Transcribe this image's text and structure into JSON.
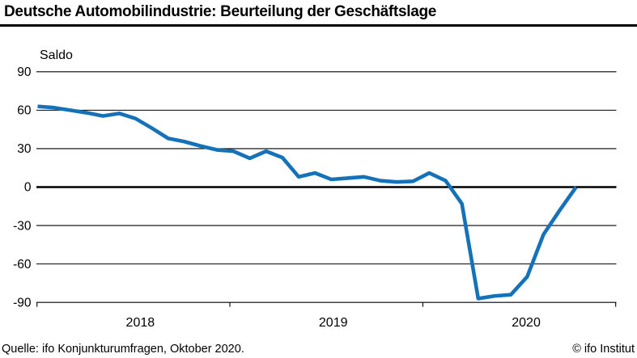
{
  "header": {
    "title": "Deutsche Automobilindustrie: Beurteilung der Geschäftslage"
  },
  "footer": {
    "source": "Quelle: ifo Konjunkturumfragen, Oktober 2020.",
    "copyright": "© ifo Institut"
  },
  "chart_data": {
    "type": "line",
    "title": "Deutsche Automobilindustrie: Beurteilung der Geschäftslage",
    "ylabel": "Saldo",
    "xlabel": "",
    "grid": true,
    "legend": "none",
    "ylim": [
      -90,
      90
    ],
    "yticks": [
      90,
      60,
      30,
      0,
      -30,
      -60,
      -90
    ],
    "zero_line_emphasized": true,
    "x_tick_labels": [
      "2018",
      "2019",
      "2020"
    ],
    "x_range": [
      "2018-01",
      "2020-10"
    ],
    "line_color": "#1572b8",
    "categories": [
      "2018-01",
      "2018-02",
      "2018-03",
      "2018-04",
      "2018-05",
      "2018-06",
      "2018-07",
      "2018-08",
      "2018-09",
      "2018-10",
      "2018-11",
      "2018-12",
      "2019-01",
      "2019-02",
      "2019-03",
      "2019-04",
      "2019-05",
      "2019-06",
      "2019-07",
      "2019-08",
      "2019-09",
      "2019-10",
      "2019-11",
      "2019-12",
      "2020-01",
      "2020-02",
      "2020-03",
      "2020-04",
      "2020-05",
      "2020-06",
      "2020-07",
      "2020-08",
      "2020-09",
      "2020-10"
    ],
    "series": [
      {
        "name": "Beurteilung der Geschäftslage (Saldo)",
        "color": "#1572b8",
        "values": [
          63,
          62,
          60,
          58,
          55.5,
          57.5,
          53.5,
          46,
          38,
          35.5,
          32,
          29,
          28,
          22.5,
          28,
          23,
          8,
          11,
          6,
          7,
          8,
          5,
          4,
          4.5,
          11,
          5,
          -13,
          -87,
          -85,
          -84,
          -70,
          -37,
          -18,
          0
        ]
      }
    ]
  }
}
